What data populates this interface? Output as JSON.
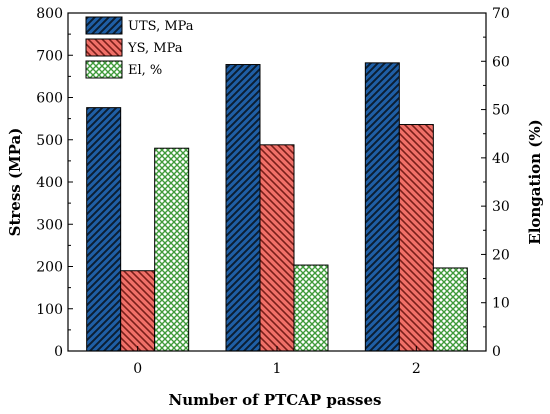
{
  "chart_data": {
    "type": "bar",
    "xlabel": "Number of PTCAP passes",
    "ylabel": "Stress (MPa)",
    "y2label": "Elongation (%)",
    "categories": [
      "0",
      "1",
      "2"
    ],
    "ylim": [
      0,
      800
    ],
    "y2lim": [
      0,
      70
    ],
    "yticks": [
      "0",
      "100",
      "200",
      "300",
      "400",
      "500",
      "600",
      "700",
      "800"
    ],
    "y2ticks": [
      "0",
      "10",
      "20",
      "30",
      "40",
      "50",
      "60",
      "70"
    ],
    "legend_position": "top-left",
    "series": [
      {
        "name": "UTS, MPa",
        "axis": "left",
        "values": [
          576,
          678,
          682
        ],
        "color": "#1f5fa6",
        "hatch": "diagonal-forward"
      },
      {
        "name": "YS, MPa",
        "axis": "left",
        "values": [
          190,
          488,
          536
        ],
        "color": "#f07068",
        "hatch": "diagonal-back"
      },
      {
        "name": "El, %",
        "axis": "right",
        "values": [
          42,
          17.8,
          17.2
        ],
        "color": "#a6d99a",
        "hatch": "crosshatch"
      }
    ]
  }
}
